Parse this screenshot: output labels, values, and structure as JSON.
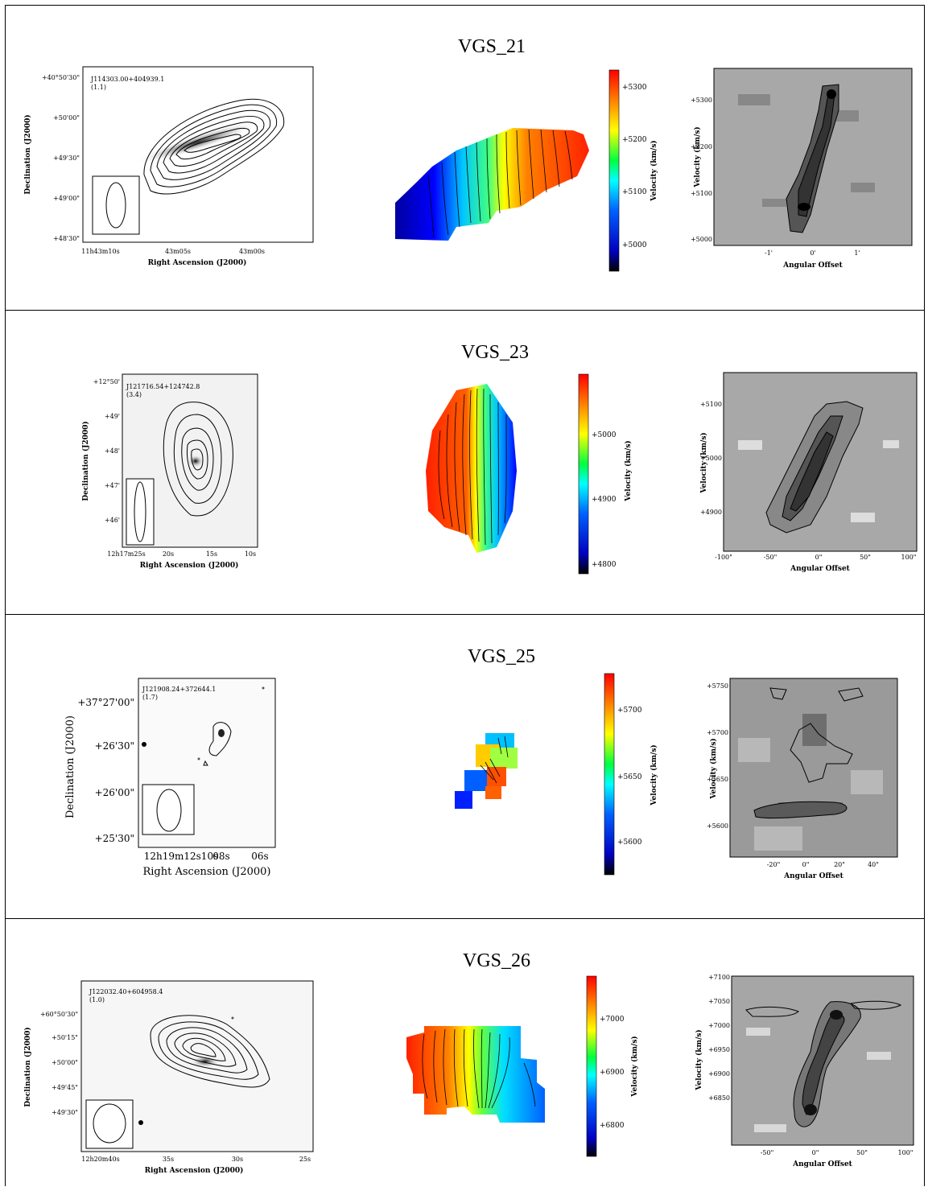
{
  "panels": [
    {
      "title": "VGS_21",
      "source_id": "J114303.00+404939.1",
      "source_val": "(1.1)",
      "ra_label": "Right Ascension (J2000)",
      "dec_label": "Declination (J2000)",
      "ra_ticks": [
        "11h43m10s",
        "43m05s",
        "43m00s"
      ],
      "dec_ticks": [
        "+40°50'30\"",
        "+50'00\"",
        "+49'30\"",
        "+49'00\"",
        "+48'30\""
      ],
      "vel_label": "Velocity (km/s)",
      "vel_ticks": [
        "+5300",
        "+5200",
        "+5100",
        "+5000"
      ],
      "pv_ylabel": "Velocity (km/s)",
      "pv_xlabel": "Angular Offset",
      "pv_yticks": [
        "+5300",
        "+5200",
        "+5100",
        "+5000"
      ],
      "pv_xticks": [
        "-1'",
        "0'",
        "1'"
      ]
    },
    {
      "title": "VGS_23",
      "source_id": "J121716.54+124742.8",
      "source_val": "(3.4)",
      "ra_label": "Right Ascension (J2000)",
      "dec_label": "Declination (J2000)",
      "ra_ticks": [
        "12h17m25s",
        "20s",
        "15s",
        "10s"
      ],
      "dec_ticks": [
        "+12°50'",
        "+49'",
        "+48'",
        "+47'",
        "+46'"
      ],
      "vel_label": "Velocity (km/s)",
      "vel_ticks": [
        "+5000",
        "+4900",
        "+4800"
      ],
      "pv_ylabel": "Velocity (km/s)",
      "pv_xlabel": "Angular Offset",
      "pv_yticks": [
        "+5100",
        "+5000",
        "+4900"
      ],
      "pv_xticks": [
        "-100\"",
        "-50\"",
        "0\"",
        "50\"",
        "100\""
      ]
    },
    {
      "title": "VGS_25",
      "source_id": "J121908.24+372644.1",
      "source_val": "(1.7)",
      "ra_label": "Right Ascension (J2000)",
      "dec_label": "Declination (J2000)",
      "ra_ticks": [
        "12h19m12s10s",
        "08s",
        "06s"
      ],
      "dec_ticks": [
        "+37°27'00\"",
        "+26'30\"",
        "+26'00\"",
        "+25'30\""
      ],
      "vel_label": "Velocity (km/s)",
      "vel_ticks": [
        "+5700",
        "+5650",
        "+5600"
      ],
      "pv_ylabel": "Velocity (km/s)",
      "pv_xlabel": "Angular Offset",
      "pv_yticks": [
        "+5750",
        "+5700",
        "+5650",
        "+5600"
      ],
      "pv_xticks": [
        "-20\"",
        "0\"",
        "20\"",
        "40\""
      ]
    },
    {
      "title": "VGS_26",
      "source_id": "J122032.40+604958.4",
      "source_val": "(1.0)",
      "ra_label": "Right Ascension (J2000)",
      "dec_label": "Declination (J2000)",
      "ra_ticks": [
        "12h20m40s",
        "35s",
        "30s",
        "25s"
      ],
      "dec_ticks": [
        "+60°50'30\"",
        "+50'15\"",
        "+50'00\"",
        "+49'45\"",
        "+49'30\""
      ],
      "vel_label": "Velocity (km/s)",
      "vel_ticks": [
        "+7000",
        "+6900",
        "+6800"
      ],
      "pv_ylabel": "Velocity (km/s)",
      "pv_xlabel": "Angular Offset",
      "pv_yticks": [
        "+7100",
        "+7050",
        "+7000",
        "+6950",
        "+6900",
        "+6850"
      ],
      "pv_xticks": [
        "-50\"",
        "0\"",
        "50\"",
        "100\""
      ]
    }
  ]
}
